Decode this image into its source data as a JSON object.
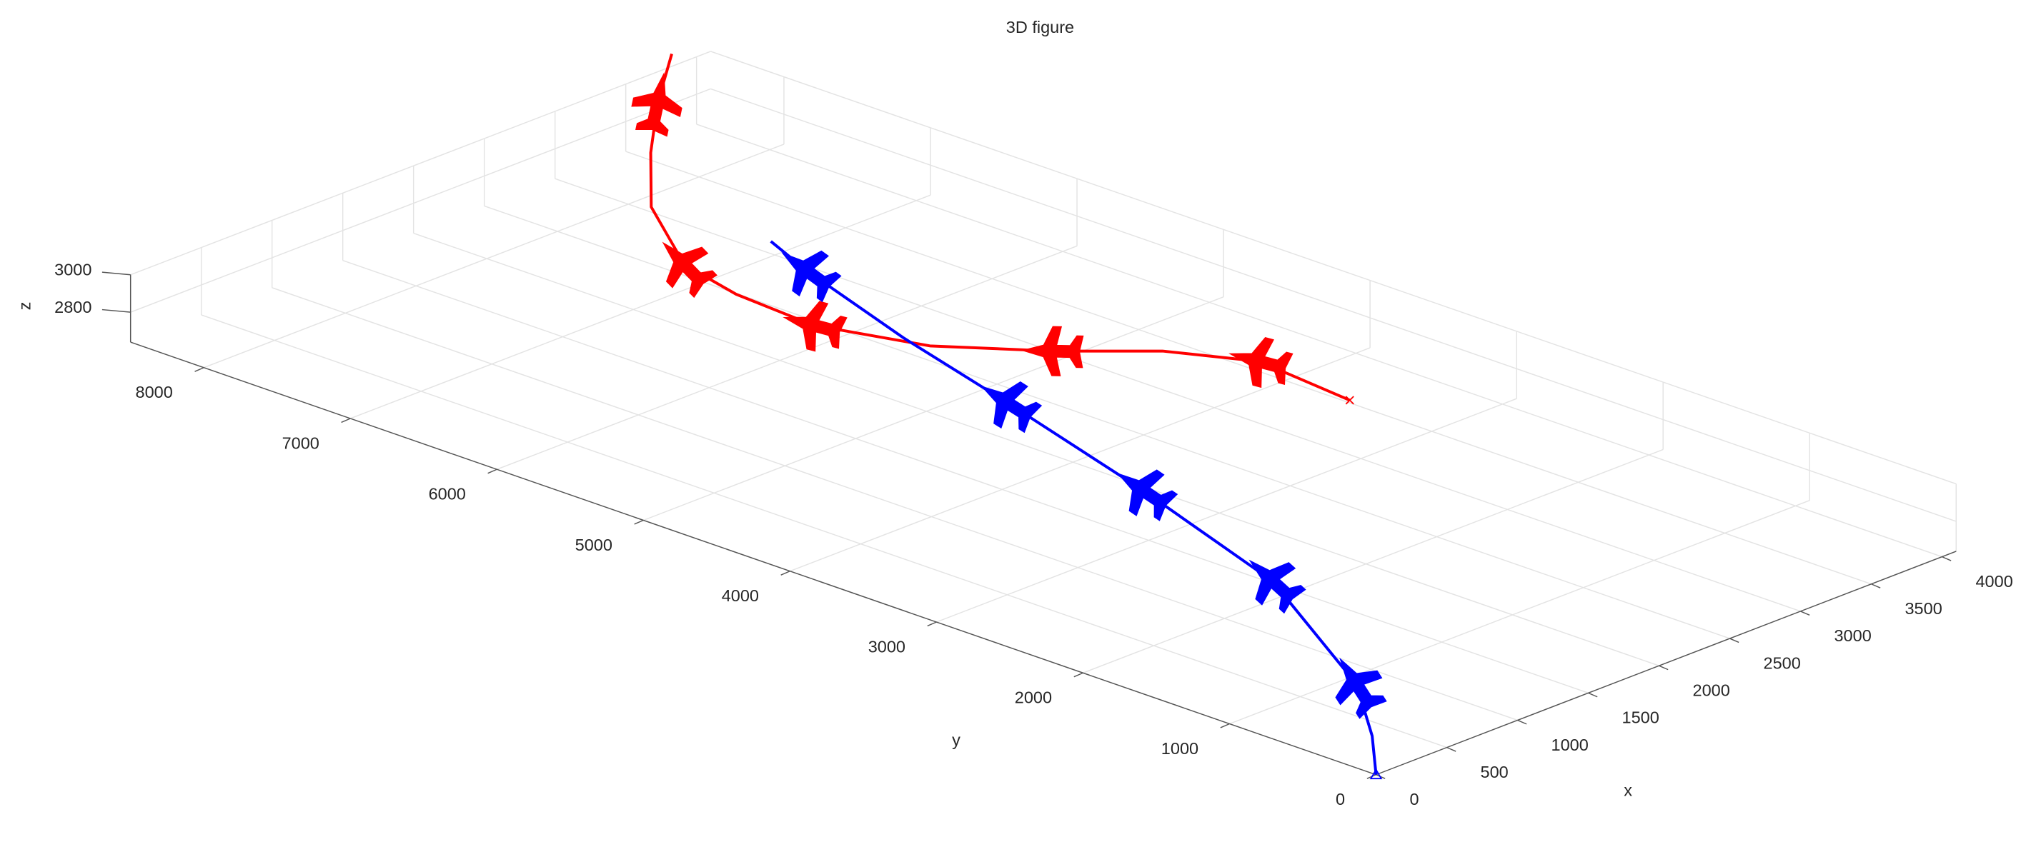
{
  "chart_data": {
    "type": "line3d",
    "title": "3D figure",
    "xlabel": "x",
    "ylabel": "y",
    "zlabel": "z",
    "xlim": [
      0,
      4100
    ],
    "ylim": [
      0,
      8500
    ],
    "zlim": [
      2640,
      3000
    ],
    "xticks": [
      0,
      500,
      1000,
      1500,
      2000,
      2500,
      3000,
      3500,
      4000
    ],
    "yticks": [
      0,
      1000,
      2000,
      3000,
      4000,
      5000,
      6000,
      7000,
      8000
    ],
    "zticks": [
      2800,
      3000
    ],
    "grid": true,
    "series": [
      {
        "color": "#ff0000",
        "x": [
          3526,
          3597,
          3372,
          3004,
          2643,
          2452,
          2492,
          2605,
          2800,
          2900,
          3000,
          3100
        ],
        "y": [
          3584,
          4270,
          4714,
          5108,
          5597,
          6207,
          6774,
          7236,
          7650,
          7750,
          7800,
          7800
        ],
        "z": [
          2640,
          2640,
          2640,
          2640,
          2640,
          2640,
          2640,
          2640,
          2778,
          3012,
          3233,
          3468
        ]
      },
      {
        "color": "#0000ff",
        "x": [
          0,
          361,
          807,
          1522,
          1962,
          2354,
          2631,
          2954,
          3119
        ],
        "y": [
          0,
          375,
          912,
          2177,
          3483,
          4789,
          5762,
          6735,
          7142
        ],
        "z": [
          2640,
          2640,
          2640,
          2640,
          2640,
          2640,
          2640,
          2640,
          2640
        ]
      }
    ]
  }
}
